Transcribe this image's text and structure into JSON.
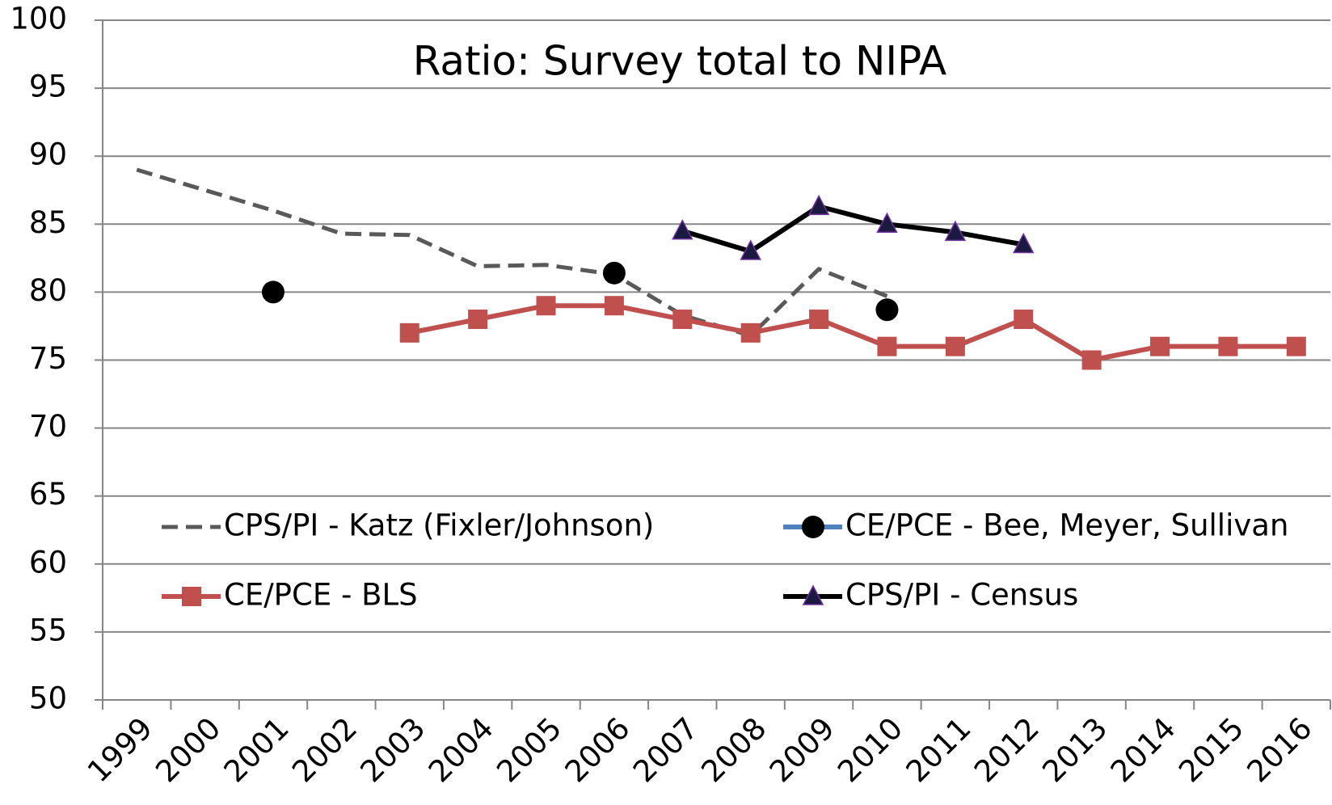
{
  "chart_data": {
    "type": "line",
    "title": "Ratio: Survey total to NIPA",
    "categories": [
      "1999",
      "2000",
      "2001",
      "2002",
      "2003",
      "2004",
      "2005",
      "2006",
      "2007",
      "2008",
      "2009",
      "2010",
      "2011",
      "2012",
      "2013",
      "2014",
      "2015",
      "2016"
    ],
    "series": [
      {
        "name": "CPS/PI - Katz (Fixler/Johnson)",
        "color": "#595959",
        "line_style": "dashed",
        "marker": "none",
        "values": [
          89,
          87.5,
          86,
          84.3,
          84.2,
          81.9,
          82,
          81.3,
          78.3,
          76.8,
          81.7,
          79.7,
          null,
          null,
          null,
          null,
          null,
          null
        ]
      },
      {
        "name": "CE/PCE - Bee, Meyer, Sullivan",
        "color": "#4f81bd",
        "marker_color": "#000000",
        "line_style": "solid",
        "marker": "circle",
        "values": [
          null,
          null,
          80,
          null,
          null,
          null,
          null,
          81.4,
          null,
          null,
          null,
          78.7,
          null,
          null,
          null,
          null,
          null,
          null
        ]
      },
      {
        "name": "CE/PCE - BLS",
        "color": "#c0504d",
        "line_style": "solid",
        "marker": "square",
        "values": [
          null,
          null,
          null,
          null,
          77,
          78,
          79,
          79,
          78,
          77,
          78,
          76,
          76,
          78,
          75,
          76,
          76,
          76
        ]
      },
      {
        "name": "CPS/PI - Census",
        "color": "#000000",
        "marker_color": "#1a1a40",
        "line_style": "solid",
        "marker": "triangle",
        "values": [
          null,
          null,
          null,
          null,
          null,
          null,
          null,
          null,
          84.5,
          83,
          86.3,
          85,
          84.4,
          83.5,
          null,
          null,
          null,
          null
        ]
      }
    ],
    "ylim": [
      50,
      100
    ],
    "yticks": [
      50,
      55,
      60,
      65,
      70,
      75,
      80,
      85,
      90,
      95,
      100
    ],
    "grid": true,
    "legend": "center"
  }
}
